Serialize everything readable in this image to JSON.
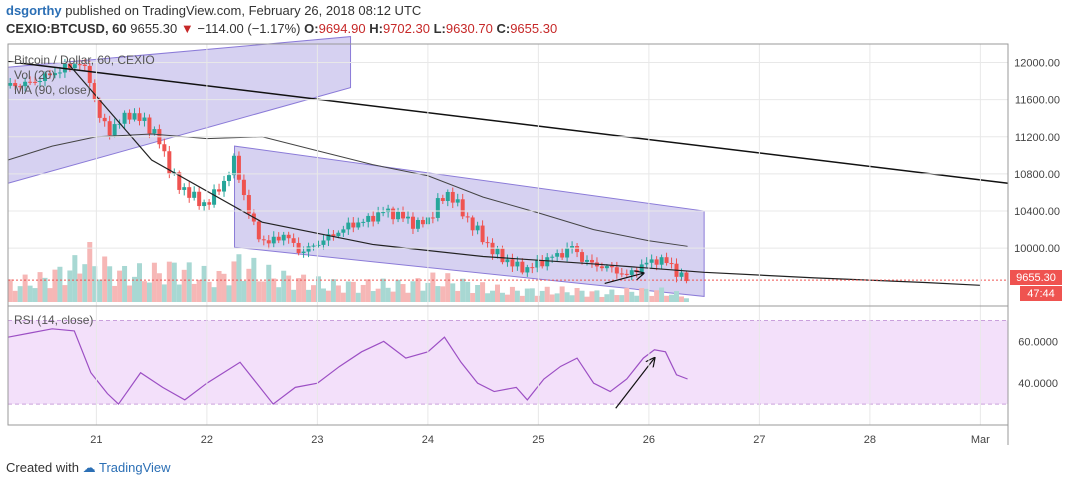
{
  "header": {
    "author": "dsgorthy",
    "published": "published on TradingView.com, February 26, 2018 08:12 UTC",
    "symbol": "CEXIO:BTCUSD, 60",
    "last": "9655.30",
    "change": "−114.00 (−1.17%)",
    "o_label": "O:",
    "o_value": "9694.90",
    "h_label": "H:",
    "h_value": "9702.30",
    "l_label": "L:",
    "l_value": "9630.70",
    "c_label": "C:",
    "c_value": "9655.30"
  },
  "legend": {
    "title": "Bitcoin / Dollar, 60, CEXIO",
    "vol": "Vol (20)",
    "ma": "MA (90, close)",
    "rsi": "RSI (14, close)"
  },
  "badges": {
    "price": "9655.30",
    "countdown": "47:44"
  },
  "footer": {
    "created_with": "Created with",
    "brand": "TradingView"
  },
  "colors": {
    "up": "#26a69a",
    "down": "#ef5350",
    "channel": "#6a5acd",
    "rsi": "#9c4fc4",
    "badge": "#ef5350",
    "grid": "#e8e8e8"
  },
  "chart_data": {
    "type": "candlestick",
    "price_axis": {
      "ylim": [
        9420,
        12200
      ],
      "ticks": [
        "12000.00",
        "11600.00",
        "11200.00",
        "10800.00",
        "10400.00",
        "10000.00"
      ],
      "tick_values": [
        12000,
        11600,
        11200,
        10800,
        10400,
        10000
      ]
    },
    "rsi_axis": {
      "ylim": [
        20,
        75
      ],
      "ticks": [
        "60.0000",
        "40.0000"
      ],
      "tick_values": [
        60,
        40
      ],
      "bands": [
        70,
        30
      ]
    },
    "x_axis": {
      "range": [
        20.2,
        29.25
      ],
      "ticks": [
        "21",
        "22",
        "23",
        "24",
        "25",
        "26",
        "27",
        "28",
        "Mar"
      ],
      "tick_values": [
        21,
        22,
        23,
        24,
        25,
        26,
        27,
        28,
        29
      ]
    },
    "price_path": [
      [
        20.2,
        11750
      ],
      [
        20.4,
        11780
      ],
      [
        20.6,
        11880
      ],
      [
        20.75,
        11960
      ],
      [
        20.85,
        12000
      ],
      [
        20.95,
        11800
      ],
      [
        21.0,
        11500
      ],
      [
        21.1,
        11250
      ],
      [
        21.2,
        11350
      ],
      [
        21.3,
        11450
      ],
      [
        21.45,
        11350
      ],
      [
        21.55,
        11200
      ],
      [
        21.65,
        10900
      ],
      [
        21.75,
        10650
      ],
      [
        21.85,
        10600
      ],
      [
        21.95,
        10450
      ],
      [
        22.05,
        10550
      ],
      [
        22.15,
        10700
      ],
      [
        22.25,
        10950
      ],
      [
        22.35,
        10500
      ],
      [
        22.45,
        10150
      ],
      [
        22.55,
        10050
      ],
      [
        22.7,
        10150
      ],
      [
        22.85,
        9950
      ],
      [
        23.0,
        10050
      ],
      [
        23.15,
        10150
      ],
      [
        23.3,
        10250
      ],
      [
        23.45,
        10300
      ],
      [
        23.6,
        10400
      ],
      [
        23.75,
        10350
      ],
      [
        23.9,
        10250
      ],
      [
        24.0,
        10300
      ],
      [
        24.1,
        10500
      ],
      [
        24.2,
        10600
      ],
      [
        24.3,
        10400
      ],
      [
        24.4,
        10250
      ],
      [
        24.5,
        10100
      ],
      [
        24.6,
        9950
      ],
      [
        24.7,
        9880
      ],
      [
        24.8,
        9800
      ],
      [
        24.9,
        9780
      ],
      [
        25.0,
        9830
      ],
      [
        25.1,
        9900
      ],
      [
        25.2,
        9930
      ],
      [
        25.3,
        10020
      ],
      [
        25.4,
        9880
      ],
      [
        25.5,
        9820
      ],
      [
        25.6,
        9800
      ],
      [
        25.7,
        9760
      ],
      [
        25.8,
        9700
      ],
      [
        25.9,
        9790
      ],
      [
        26.0,
        9850
      ],
      [
        26.1,
        9880
      ],
      [
        26.2,
        9820
      ],
      [
        26.28,
        9700
      ],
      [
        26.35,
        9655
      ]
    ],
    "volume_path": [
      [
        20.2,
        0.3
      ],
      [
        20.5,
        0.4
      ],
      [
        20.8,
        0.6
      ],
      [
        20.9,
        0.9
      ],
      [
        21.0,
        0.7
      ],
      [
        21.2,
        0.5
      ],
      [
        21.5,
        0.5
      ],
      [
        21.7,
        0.6
      ],
      [
        21.9,
        0.5
      ],
      [
        22.1,
        0.4
      ],
      [
        22.3,
        0.7
      ],
      [
        22.5,
        0.5
      ],
      [
        22.8,
        0.4
      ],
      [
        23.1,
        0.3
      ],
      [
        23.5,
        0.3
      ],
      [
        23.8,
        0.3
      ],
      [
        24.1,
        0.4
      ],
      [
        24.4,
        0.3
      ],
      [
        24.7,
        0.2
      ],
      [
        25.0,
        0.2
      ],
      [
        25.3,
        0.2
      ],
      [
        25.6,
        0.15
      ],
      [
        25.9,
        0.2
      ],
      [
        26.1,
        0.2
      ],
      [
        26.35,
        0.1
      ]
    ],
    "ma90": [
      [
        20.2,
        10950
      ],
      [
        20.6,
        11100
      ],
      [
        21.0,
        11200
      ],
      [
        21.5,
        11230
      ],
      [
        22.0,
        11180
      ],
      [
        22.5,
        11200
      ],
      [
        23.0,
        11050
      ],
      [
        23.5,
        10900
      ],
      [
        24.0,
        10780
      ],
      [
        24.5,
        10550
      ],
      [
        25.0,
        10380
      ],
      [
        25.5,
        10200
      ],
      [
        26.0,
        10080
      ],
      [
        26.35,
        10020
      ]
    ],
    "rsi": [
      [
        20.2,
        62
      ],
      [
        20.4,
        64
      ],
      [
        20.6,
        66
      ],
      [
        20.8,
        65
      ],
      [
        20.95,
        45
      ],
      [
        21.1,
        35
      ],
      [
        21.2,
        30
      ],
      [
        21.4,
        45
      ],
      [
        21.6,
        38
      ],
      [
        21.8,
        32
      ],
      [
        22.0,
        40
      ],
      [
        22.15,
        45
      ],
      [
        22.3,
        50
      ],
      [
        22.45,
        40
      ],
      [
        22.6,
        30
      ],
      [
        22.8,
        38
      ],
      [
        23.0,
        40
      ],
      [
        23.2,
        48
      ],
      [
        23.4,
        55
      ],
      [
        23.6,
        60
      ],
      [
        23.8,
        52
      ],
      [
        24.0,
        55
      ],
      [
        24.15,
        62
      ],
      [
        24.3,
        50
      ],
      [
        24.45,
        40
      ],
      [
        24.6,
        36
      ],
      [
        24.8,
        38
      ],
      [
        24.9,
        32
      ],
      [
        25.05,
        42
      ],
      [
        25.2,
        48
      ],
      [
        25.35,
        52
      ],
      [
        25.5,
        40
      ],
      [
        25.65,
        36
      ],
      [
        25.8,
        42
      ],
      [
        25.95,
        52
      ],
      [
        26.05,
        56
      ],
      [
        26.15,
        55
      ],
      [
        26.25,
        44
      ],
      [
        26.35,
        42
      ]
    ],
    "trendlines": [
      {
        "name": "long-downtrend",
        "from": [
          20.2,
          12010
        ],
        "to": [
          29.25,
          10700
        ]
      },
      {
        "name": "curve-support",
        "points": [
          [
            20.75,
            11980
          ],
          [
            21.5,
            10950
          ],
          [
            22.5,
            10280
          ],
          [
            23.5,
            10040
          ],
          [
            24.5,
            9910
          ],
          [
            25.5,
            9830
          ],
          [
            26.5,
            9740
          ],
          [
            27.5,
            9680
          ],
          [
            28.5,
            9630
          ],
          [
            29.0,
            9600
          ]
        ]
      }
    ],
    "channels": [
      {
        "name": "upper-left-channel",
        "bottom": [
          [
            20.2,
            10700
          ],
          [
            23.3,
            11730
          ]
        ],
        "top": [
          [
            20.2,
            11950
          ],
          [
            23.3,
            12280
          ]
        ]
      },
      {
        "name": "descending-channel",
        "top": [
          [
            22.25,
            11100
          ],
          [
            26.5,
            10400
          ]
        ],
        "bottom": [
          [
            22.25,
            10010
          ],
          [
            26.5,
            9480
          ]
        ]
      }
    ],
    "arrows": [
      {
        "pane": "price",
        "from": [
          25.6,
          9620
        ],
        "to": [
          25.95,
          9730
        ]
      },
      {
        "pane": "rsi",
        "from": [
          25.7,
          28
        ],
        "to": [
          26.05,
          52
        ]
      }
    ]
  }
}
